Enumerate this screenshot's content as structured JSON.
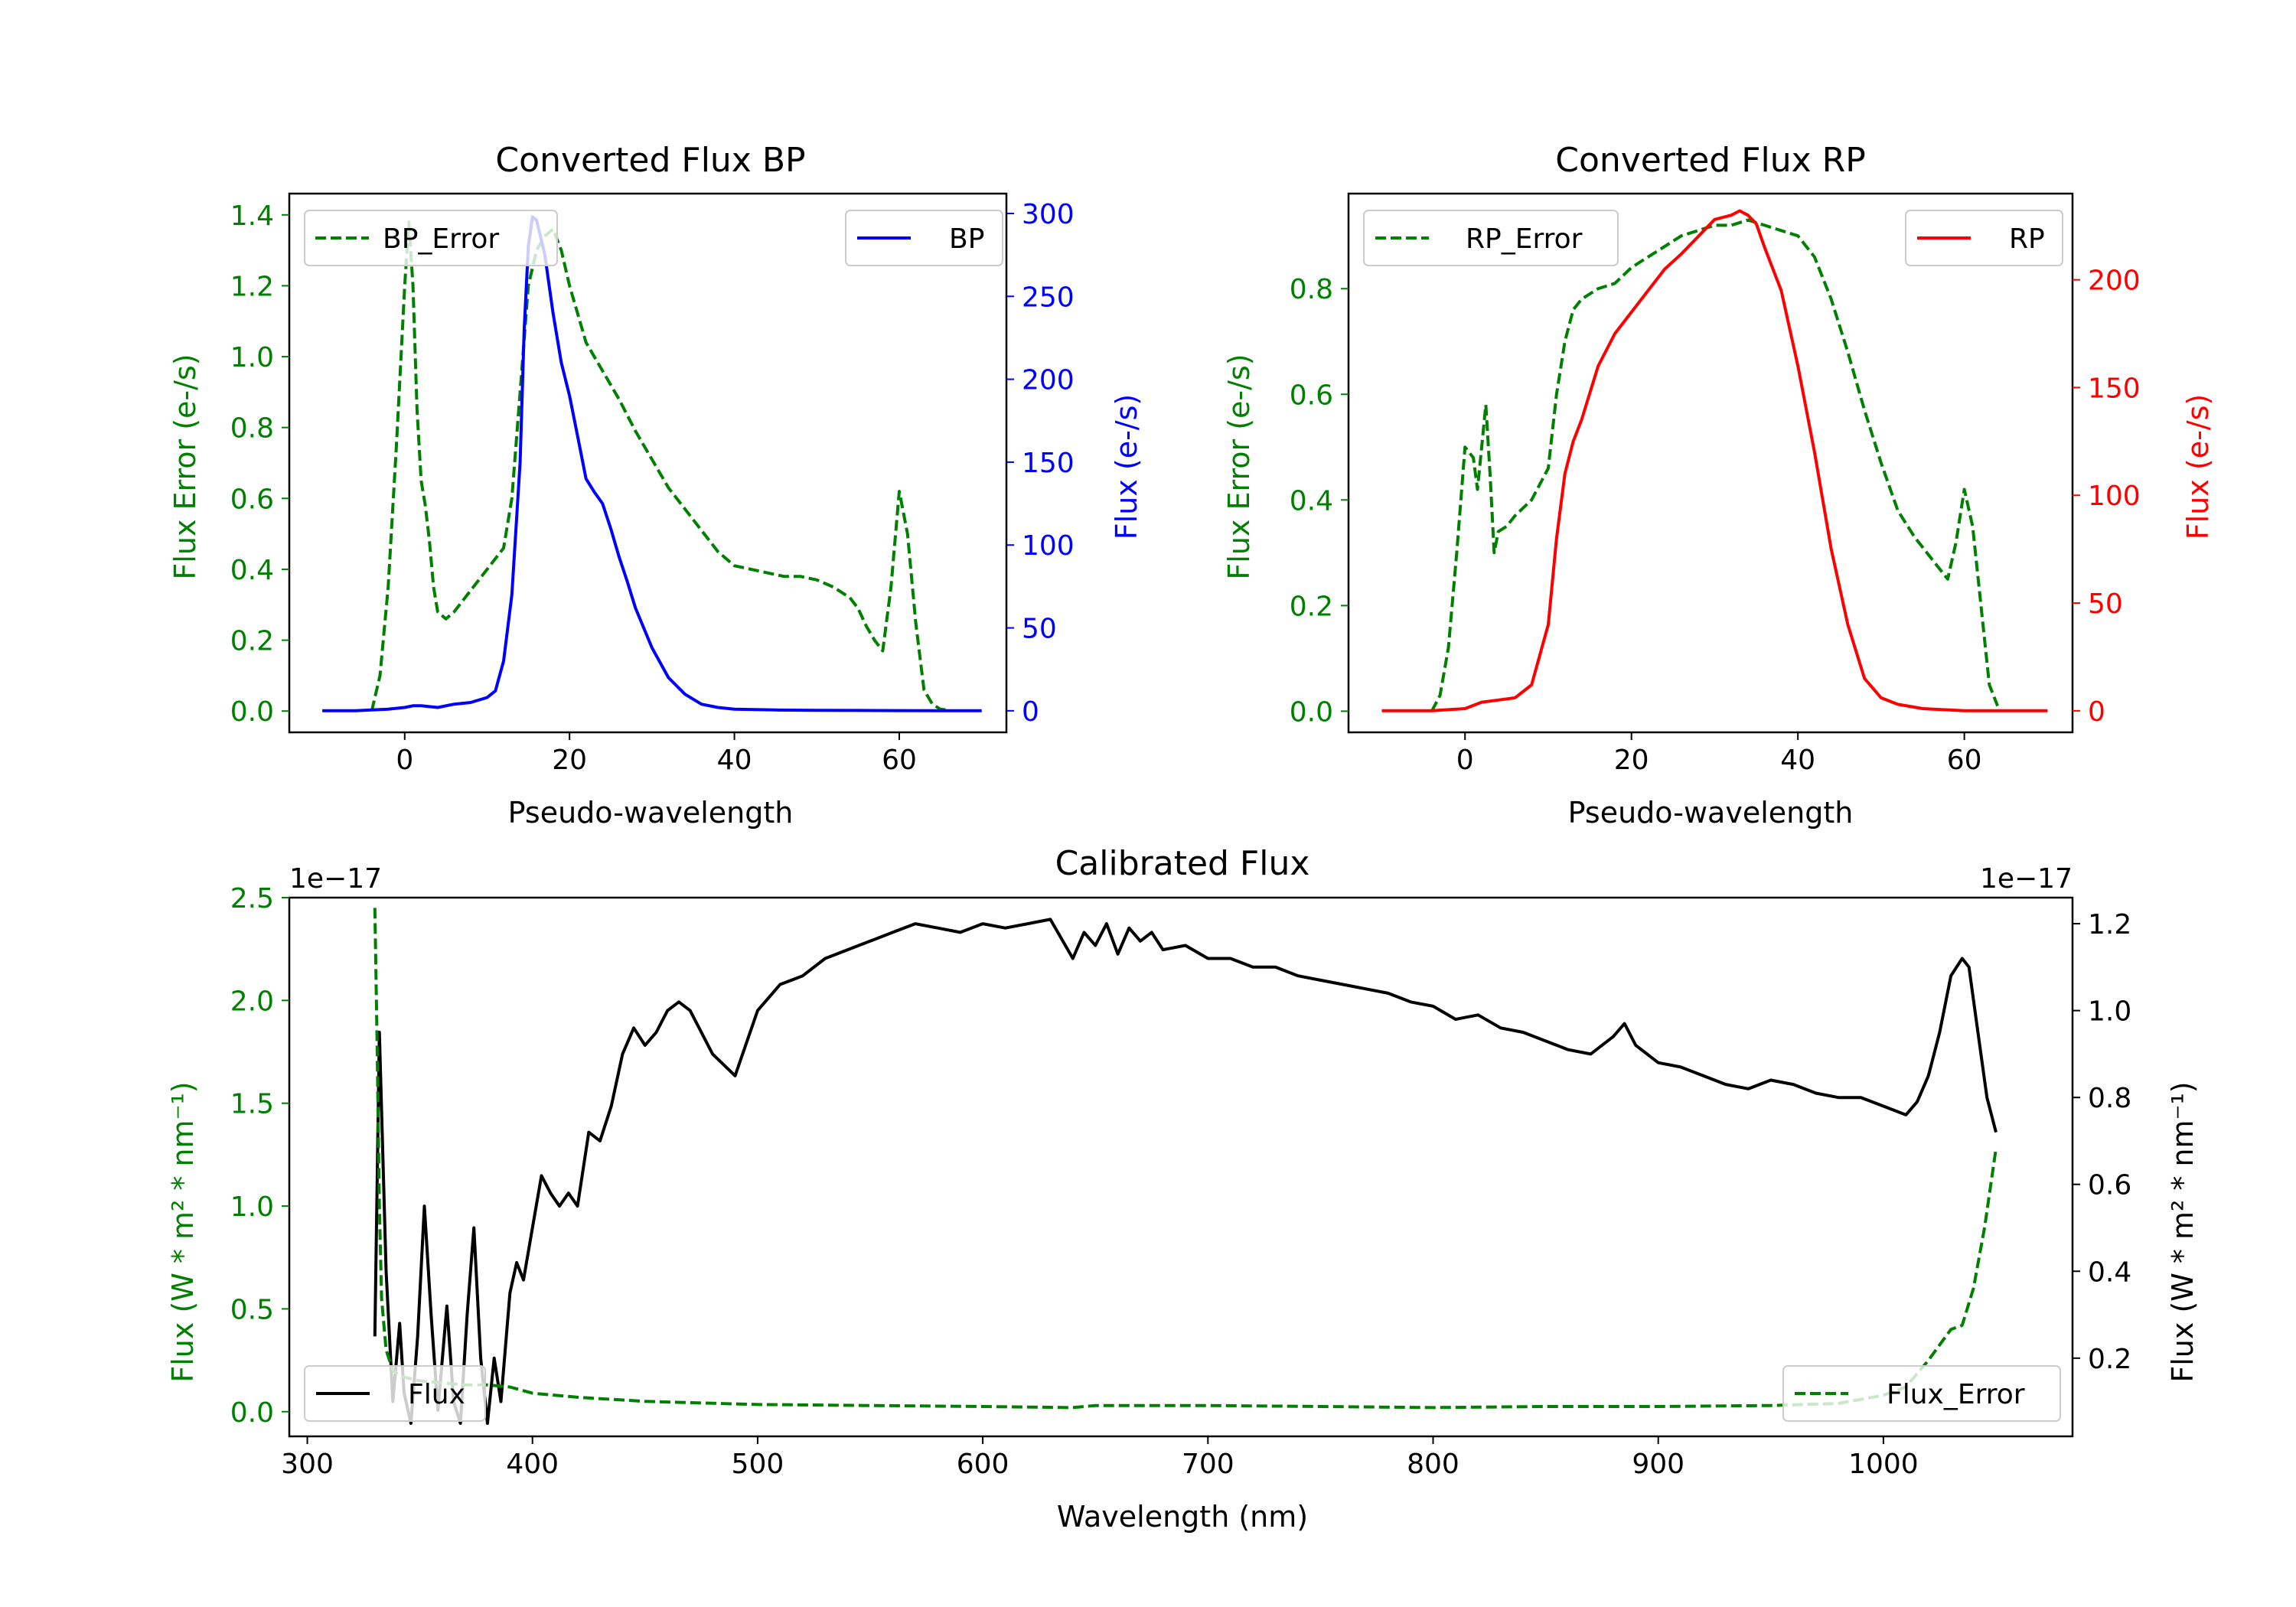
{
  "colors": {
    "green": "#008000",
    "blue": "#0000ff",
    "red": "#ff0000",
    "black": "#000000"
  },
  "chart_data": [
    {
      "id": "bp",
      "type": "line",
      "title": "Converted Flux BP",
      "xlabel": "Pseudo-wavelength",
      "ylabel_left": "Flux Error (e-/s)",
      "ylabel_right": "Flux (e-/s)",
      "xlim": [
        -14,
        73
      ],
      "ylim_left": [
        -0.06,
        1.46
      ],
      "ylim_right": [
        -13,
        312
      ],
      "xticks": [
        0,
        20,
        40,
        60
      ],
      "yticks_left": [
        "0.0",
        "0.2",
        "0.4",
        "0.6",
        "0.8",
        "1.0",
        "1.2",
        "1.4"
      ],
      "yticks_right": [
        "0",
        "50",
        "100",
        "150",
        "200",
        "250",
        "300"
      ],
      "legend_left": "BP_Error",
      "legend_right": "BP",
      "series": [
        {
          "name": "BP_Error",
          "axis": "left",
          "style": "dashed",
          "color": "#008000",
          "x": [
            -4,
            -3,
            -2,
            -1,
            0,
            0.5,
            1,
            1.5,
            2,
            2.5,
            3,
            3.5,
            4,
            5,
            6,
            8,
            10,
            12,
            13,
            14,
            15,
            16,
            17,
            18,
            19,
            20,
            21,
            22,
            24,
            26,
            28,
            30,
            32,
            34,
            36,
            38,
            40,
            42,
            44,
            46,
            48,
            50,
            52,
            54,
            55,
            56,
            57,
            58,
            59,
            60,
            61,
            62,
            63,
            64,
            65,
            66
          ],
          "y": [
            0,
            0.1,
            0.35,
            0.75,
            1.2,
            1.38,
            1.2,
            0.85,
            0.65,
            0.58,
            0.48,
            0.35,
            0.28,
            0.26,
            0.28,
            0.34,
            0.4,
            0.46,
            0.6,
            0.9,
            1.2,
            1.3,
            1.34,
            1.36,
            1.3,
            1.2,
            1.12,
            1.04,
            0.96,
            0.88,
            0.79,
            0.71,
            0.63,
            0.57,
            0.51,
            0.45,
            0.41,
            0.4,
            0.39,
            0.38,
            0.38,
            0.37,
            0.35,
            0.32,
            0.29,
            0.24,
            0.2,
            0.17,
            0.35,
            0.62,
            0.5,
            0.25,
            0.06,
            0.02,
            0.005,
            0.003
          ]
        },
        {
          "name": "BP",
          "axis": "right",
          "style": "solid",
          "color": "#0000ff",
          "x": [
            -10,
            -6,
            -2,
            0,
            1,
            2,
            4,
            6,
            8,
            10,
            11,
            12,
            13,
            14,
            14.5,
            15,
            15.5,
            16,
            17,
            18,
            19,
            20,
            21,
            22,
            23,
            24,
            25,
            26,
            27,
            28,
            30,
            32,
            34,
            36,
            38,
            40,
            45,
            50,
            55,
            60,
            65,
            70
          ],
          "y": [
            0,
            0,
            1,
            2,
            3,
            3,
            2,
            4,
            5,
            8,
            12,
            30,
            70,
            150,
            230,
            280,
            298,
            296,
            275,
            240,
            210,
            190,
            165,
            140,
            132,
            125,
            110,
            93,
            78,
            62,
            38,
            20,
            10,
            4,
            2,
            1,
            0.5,
            0.3,
            0.2,
            0.1,
            0,
            0
          ]
        }
      ]
    },
    {
      "id": "rp",
      "type": "line",
      "title": "Converted Flux RP",
      "xlabel": "Pseudo-wavelength",
      "ylabel_left": "Flux Error (e-/s)",
      "ylabel_right": "Flux (e-/s)",
      "xlim": [
        -14,
        73
      ],
      "ylim_left": [
        -0.04,
        0.98
      ],
      "ylim_right": [
        -10,
        240
      ],
      "xticks": [
        0,
        20,
        40,
        60
      ],
      "yticks_left": [
        "0.0",
        "0.2",
        "0.4",
        "0.6",
        "0.8"
      ],
      "yticks_right": [
        "0",
        "50",
        "100",
        "150",
        "200"
      ],
      "legend_left": "RP_Error",
      "legend_right": "RP",
      "series": [
        {
          "name": "RP_Error",
          "axis": "left",
          "style": "dashed",
          "color": "#008000",
          "x": [
            -4,
            -3,
            -2,
            -1,
            0,
            1,
            1.5,
            2,
            2.5,
            3,
            3.5,
            4,
            5,
            6,
            8,
            10,
            11,
            12,
            13,
            14,
            15,
            16,
            18,
            20,
            22,
            24,
            26,
            28,
            30,
            32,
            34,
            36,
            38,
            40,
            42,
            44,
            46,
            48,
            50,
            52,
            54,
            55,
            56,
            57,
            58,
            59,
            60,
            61,
            62,
            63,
            64
          ],
          "y": [
            0,
            0.03,
            0.12,
            0.3,
            0.5,
            0.48,
            0.42,
            0.5,
            0.58,
            0.45,
            0.3,
            0.34,
            0.35,
            0.37,
            0.4,
            0.46,
            0.6,
            0.7,
            0.76,
            0.78,
            0.79,
            0.8,
            0.81,
            0.84,
            0.86,
            0.88,
            0.9,
            0.91,
            0.92,
            0.92,
            0.93,
            0.92,
            0.91,
            0.9,
            0.86,
            0.78,
            0.68,
            0.57,
            0.47,
            0.38,
            0.33,
            0.31,
            0.29,
            0.27,
            0.25,
            0.32,
            0.42,
            0.35,
            0.2,
            0.05,
            0.01
          ]
        },
        {
          "name": "RP",
          "axis": "right",
          "style": "solid",
          "color": "#ff0000",
          "x": [
            -10,
            -4,
            0,
            2,
            4,
            6,
            8,
            10,
            11,
            12,
            13,
            14,
            16,
            18,
            20,
            22,
            24,
            26,
            28,
            30,
            32,
            33,
            34,
            35,
            36,
            38,
            40,
            42,
            44,
            46,
            48,
            50,
            52,
            55,
            60,
            65,
            70
          ],
          "y": [
            0,
            0,
            1,
            4,
            5,
            6,
            12,
            40,
            80,
            110,
            125,
            135,
            160,
            175,
            185,
            195,
            205,
            212,
            220,
            228,
            230,
            232,
            230,
            226,
            215,
            195,
            160,
            120,
            75,
            40,
            15,
            6,
            3,
            1,
            0,
            0,
            0
          ]
        }
      ]
    },
    {
      "id": "calibrated",
      "type": "line",
      "title": "Calibrated Flux",
      "xlabel": "Wavelength (nm)",
      "ylabel_left": "Flux (W * m² * nm⁻¹)",
      "ylabel_right": "Flux (W * m² * nm⁻¹)",
      "offset_left": "1e−17",
      "offset_right": "1e−17",
      "xlim": [
        292,
        1084
      ],
      "ylim_left": [
        -0.12,
        2.5
      ],
      "ylim_right": [
        0.02,
        1.26
      ],
      "xticks": [
        300,
        400,
        500,
        600,
        700,
        800,
        900,
        1000
      ],
      "yticks_left": [
        "0.0",
        "0.5",
        "1.0",
        "1.5",
        "2.0",
        "2.5"
      ],
      "yticks_right": [
        "0.2",
        "0.4",
        "0.6",
        "0.8",
        "1.0",
        "1.2"
      ],
      "legend_left": "Flux",
      "legend_right": "Flux_Error",
      "series": [
        {
          "name": "Flux",
          "axis": "right",
          "style": "solid",
          "color": "#000000",
          "x": [
            330,
            332,
            335,
            338,
            341,
            343,
            346,
            349,
            352,
            355,
            358,
            362,
            365,
            368,
            371,
            374,
            377,
            380,
            383,
            386,
            390,
            393,
            396,
            400,
            404,
            408,
            412,
            416,
            420,
            425,
            430,
            435,
            440,
            445,
            450,
            455,
            460,
            465,
            470,
            480,
            490,
            500,
            510,
            520,
            530,
            540,
            550,
            560,
            570,
            580,
            590,
            600,
            610,
            620,
            630,
            640,
            645,
            650,
            655,
            660,
            665,
            670,
            675,
            680,
            690,
            700,
            710,
            720,
            730,
            740,
            750,
            760,
            770,
            780,
            790,
            800,
            810,
            820,
            830,
            840,
            850,
            860,
            870,
            880,
            885,
            890,
            900,
            910,
            920,
            930,
            940,
            950,
            960,
            970,
            980,
            990,
            1000,
            1010,
            1015,
            1020,
            1025,
            1030,
            1035,
            1038,
            1042,
            1046,
            1050
          ],
          "y": [
            0.25,
            0.95,
            0.4,
            0.1,
            0.28,
            0.12,
            0.05,
            0.25,
            0.55,
            0.3,
            0.08,
            0.32,
            0.1,
            0.05,
            0.3,
            0.5,
            0.2,
            0.05,
            0.2,
            0.1,
            0.35,
            0.42,
            0.38,
            0.5,
            0.62,
            0.58,
            0.55,
            0.58,
            0.55,
            0.72,
            0.7,
            0.78,
            0.9,
            0.96,
            0.92,
            0.95,
            1.0,
            1.02,
            1.0,
            0.9,
            0.85,
            1.0,
            1.06,
            1.08,
            1.12,
            1.14,
            1.16,
            1.18,
            1.2,
            1.19,
            1.18,
            1.2,
            1.19,
            1.2,
            1.21,
            1.12,
            1.18,
            1.15,
            1.2,
            1.13,
            1.19,
            1.16,
            1.18,
            1.14,
            1.15,
            1.12,
            1.12,
            1.1,
            1.1,
            1.08,
            1.07,
            1.06,
            1.05,
            1.04,
            1.02,
            1.01,
            0.98,
            0.99,
            0.96,
            0.95,
            0.93,
            0.91,
            0.9,
            0.94,
            0.97,
            0.92,
            0.88,
            0.87,
            0.85,
            0.83,
            0.82,
            0.84,
            0.83,
            0.81,
            0.8,
            0.8,
            0.78,
            0.76,
            0.79,
            0.85,
            0.95,
            1.08,
            1.12,
            1.1,
            0.95,
            0.8,
            0.72
          ]
        },
        {
          "name": "Flux_Error",
          "axis": "left",
          "style": "dashed",
          "color": "#008000",
          "x": [
            330,
            331,
            332,
            333,
            335,
            338,
            342,
            350,
            360,
            370,
            380,
            390,
            400,
            420,
            450,
            500,
            550,
            600,
            640,
            650,
            700,
            750,
            800,
            850,
            900,
            950,
            980,
            1000,
            1010,
            1020,
            1030,
            1035,
            1040,
            1045,
            1050
          ],
          "y": [
            2.45,
            1.8,
            1.0,
            0.55,
            0.3,
            0.2,
            0.17,
            0.15,
            0.14,
            0.13,
            0.13,
            0.12,
            0.09,
            0.07,
            0.05,
            0.035,
            0.03,
            0.025,
            0.02,
            0.03,
            0.03,
            0.025,
            0.02,
            0.025,
            0.025,
            0.03,
            0.04,
            0.08,
            0.12,
            0.25,
            0.4,
            0.42,
            0.6,
            0.9,
            1.28
          ]
        }
      ]
    }
  ]
}
